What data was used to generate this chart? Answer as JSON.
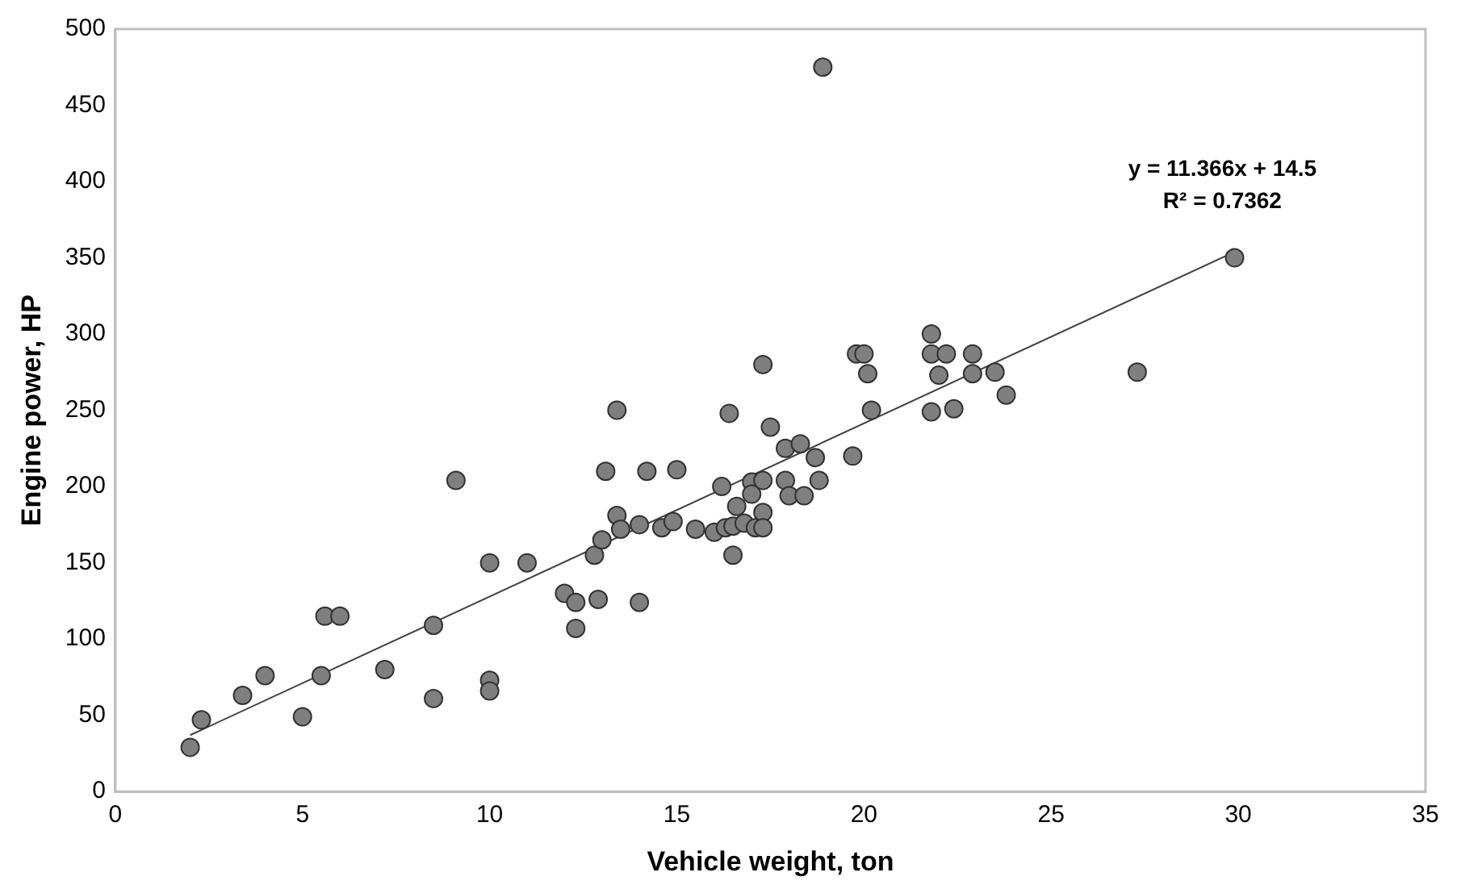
{
  "chart_data": {
    "type": "scatter",
    "xlabel": "Vehicle weight, ton",
    "ylabel": "Engine power, HP",
    "xlim": [
      0,
      35
    ],
    "xticks": [
      0,
      5,
      10,
      15,
      20,
      25,
      30,
      35
    ],
    "ylim": [
      0,
      500
    ],
    "yticks": [
      0,
      50,
      100,
      150,
      200,
      250,
      300,
      350,
      400,
      450,
      500
    ],
    "grid": false,
    "legend": false,
    "marker": "circle",
    "annotations": [
      "y = 11.366x + 14.5",
      "R² = 0.7362"
    ],
    "series": [
      {
        "color": "#7f7f7f",
        "x": [
          2,
          2.3,
          3.4,
          4,
          5,
          5.5,
          5.6,
          6,
          7.2,
          8.5,
          8.5,
          9.1,
          10,
          10,
          10,
          11,
          12,
          12.3,
          12.3,
          12.8,
          12.9,
          13,
          13.1,
          13.4,
          13.4,
          13.5,
          14,
          14,
          14.2,
          14.6,
          14.9,
          15,
          15.5,
          16,
          16.2,
          16.3,
          16.4,
          16.5,
          16.6,
          16.5,
          16.8,
          17,
          17,
          17.1,
          17.3,
          17.3,
          17.3,
          17.3,
          17.5,
          17.9,
          17.9,
          18,
          18.3,
          18.4,
          18.7,
          18.8,
          18.9,
          19.7,
          19.8,
          20,
          20.1,
          20.2,
          21.8,
          21.8,
          21.8,
          22,
          22.2,
          22.4,
          22.9,
          22.9,
          23.5,
          23.8,
          27.3,
          29.9
        ],
        "values": [
          29,
          47,
          63,
          76,
          49,
          76,
          115,
          115,
          80,
          61,
          109,
          204,
          150,
          73,
          66,
          150,
          130,
          124,
          107,
          155,
          126,
          165,
          210,
          181,
          250,
          172,
          175,
          124,
          210,
          173,
          177,
          211,
          172,
          170,
          200,
          173,
          248,
          174,
          187,
          155,
          176,
          203,
          195,
          173,
          280,
          183,
          173,
          204,
          239,
          225,
          204,
          194,
          228,
          194,
          219,
          204,
          475,
          220,
          287,
          287,
          274,
          250,
          300,
          287,
          249,
          273,
          287,
          251,
          274,
          287,
          275,
          260,
          275,
          350
        ]
      },
      {
        "type": "line",
        "color": "#404040",
        "x": [
          2,
          30
        ],
        "values": [
          37,
          355
        ],
        "marker": "none",
        "line_style": "solid"
      }
    ]
  }
}
